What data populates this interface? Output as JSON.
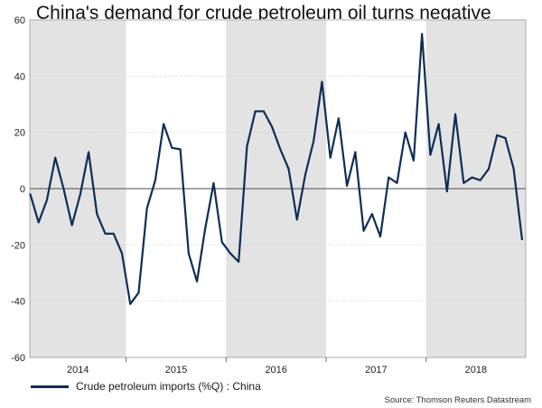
{
  "chart_data": {
    "type": "line",
    "title": "China's demand for crude petroleum oil turns negative",
    "xlabel": "",
    "ylabel": "",
    "ylim": [
      -60,
      60
    ],
    "yticks": [
      60,
      40,
      20,
      0,
      -20,
      -40,
      -60
    ],
    "year_labels": [
      "2014",
      "2015",
      "2016",
      "2017",
      "2018"
    ],
    "shaded_years": [
      "2014",
      "2016",
      "2018"
    ],
    "x": [
      "Jan 2014",
      "Feb 2014",
      "Mar 2014",
      "Apr 2014",
      "May 2014",
      "Jun 2014",
      "Jul 2014",
      "Aug 2014",
      "Sep 2014",
      "Oct 2014",
      "Nov 2014",
      "Dec 2014",
      "Jan 2015",
      "Feb 2015",
      "Mar 2015",
      "Apr 2015",
      "May 2015",
      "Jun 2015",
      "Jul 2015",
      "Aug 2015",
      "Sep 2015",
      "Oct 2015",
      "Nov 2015",
      "Dec 2015",
      "Jan 2016",
      "Feb 2016",
      "Mar 2016",
      "Apr 2016",
      "May 2016",
      "Jun 2016",
      "Jul 2016",
      "Aug 2016",
      "Sep 2016",
      "Oct 2016",
      "Nov 2016",
      "Dec 2016",
      "Jan 2017",
      "Feb 2017",
      "Mar 2017",
      "Apr 2017",
      "May 2017",
      "Jun 2017",
      "Jul 2017",
      "Aug 2017",
      "Sep 2017",
      "Oct 2017",
      "Nov 2017",
      "Dec 2017",
      "Jan 2018",
      "Feb 2018",
      "Mar 2018",
      "Apr 2018",
      "May 2018",
      "Jun 2018",
      "Jul 2018",
      "Aug 2018",
      "Sep 2018",
      "Oct 2018",
      "Nov 2018",
      "Dec 2018"
    ],
    "series": [
      {
        "name": "Crude petroleum imports (%Q) : China",
        "color": "#0d2d57",
        "values": [
          -2,
          -12,
          -4,
          11,
          0,
          -13,
          -2,
          13,
          -9,
          -16,
          -16,
          -23,
          -41,
          -37,
          -7,
          3,
          23,
          14.5,
          14,
          -23,
          -33,
          -14,
          2,
          -19,
          -23,
          -26,
          15,
          27.5,
          27.5,
          22,
          14,
          7,
          -11,
          5,
          17,
          38,
          11,
          25,
          1,
          13,
          -15,
          -9,
          -17,
          4,
          2,
          20,
          10,
          55,
          12,
          23,
          -1,
          26.5,
          2,
          4,
          3,
          7,
          19,
          18,
          7,
          -18
        ]
      }
    ],
    "legend": "bottom-left",
    "grid": true
  },
  "colors": {
    "background": "#ffffff",
    "shade": "#e3e3e3",
    "grid": "#c8c8c8",
    "zero_line": "#4d4d4d",
    "series": "#0d2d57"
  },
  "source": "Source: Thomson Reuters Datastream"
}
